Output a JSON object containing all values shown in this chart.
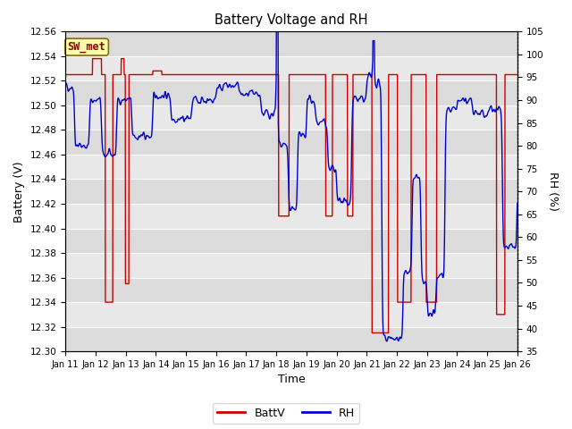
{
  "title": "Battery Voltage and RH",
  "xlabel": "Time",
  "ylabel_left": "Battery (V)",
  "ylabel_right": "RH (%)",
  "annotation": "SW_met",
  "ylim_left": [
    12.3,
    12.56
  ],
  "ylim_right": [
    35,
    105
  ],
  "yticks_left": [
    12.3,
    12.32,
    12.34,
    12.36,
    12.38,
    12.4,
    12.42,
    12.44,
    12.46,
    12.48,
    12.5,
    12.52,
    12.54,
    12.56
  ],
  "yticks_right": [
    35,
    40,
    45,
    50,
    55,
    60,
    65,
    70,
    75,
    80,
    85,
    90,
    95,
    100,
    105
  ],
  "color_batt": "#cc0000",
  "color_rh": "#0000cc",
  "legend_labels": [
    "BattV",
    "RH"
  ],
  "x_tick_labels": [
    "Jan 11",
    "Jan 12",
    "Jan 13",
    "Jan 14",
    "Jan 15",
    "Jan 16",
    "Jan 17",
    "Jan 18",
    "Jan 19",
    "Jan 20",
    "Jan 21",
    "Jan 22",
    "Jan 23",
    "Jan 24",
    "Jan 25",
    "Jan 26"
  ],
  "figsize": [
    6.4,
    4.8
  ],
  "dpi": 100
}
